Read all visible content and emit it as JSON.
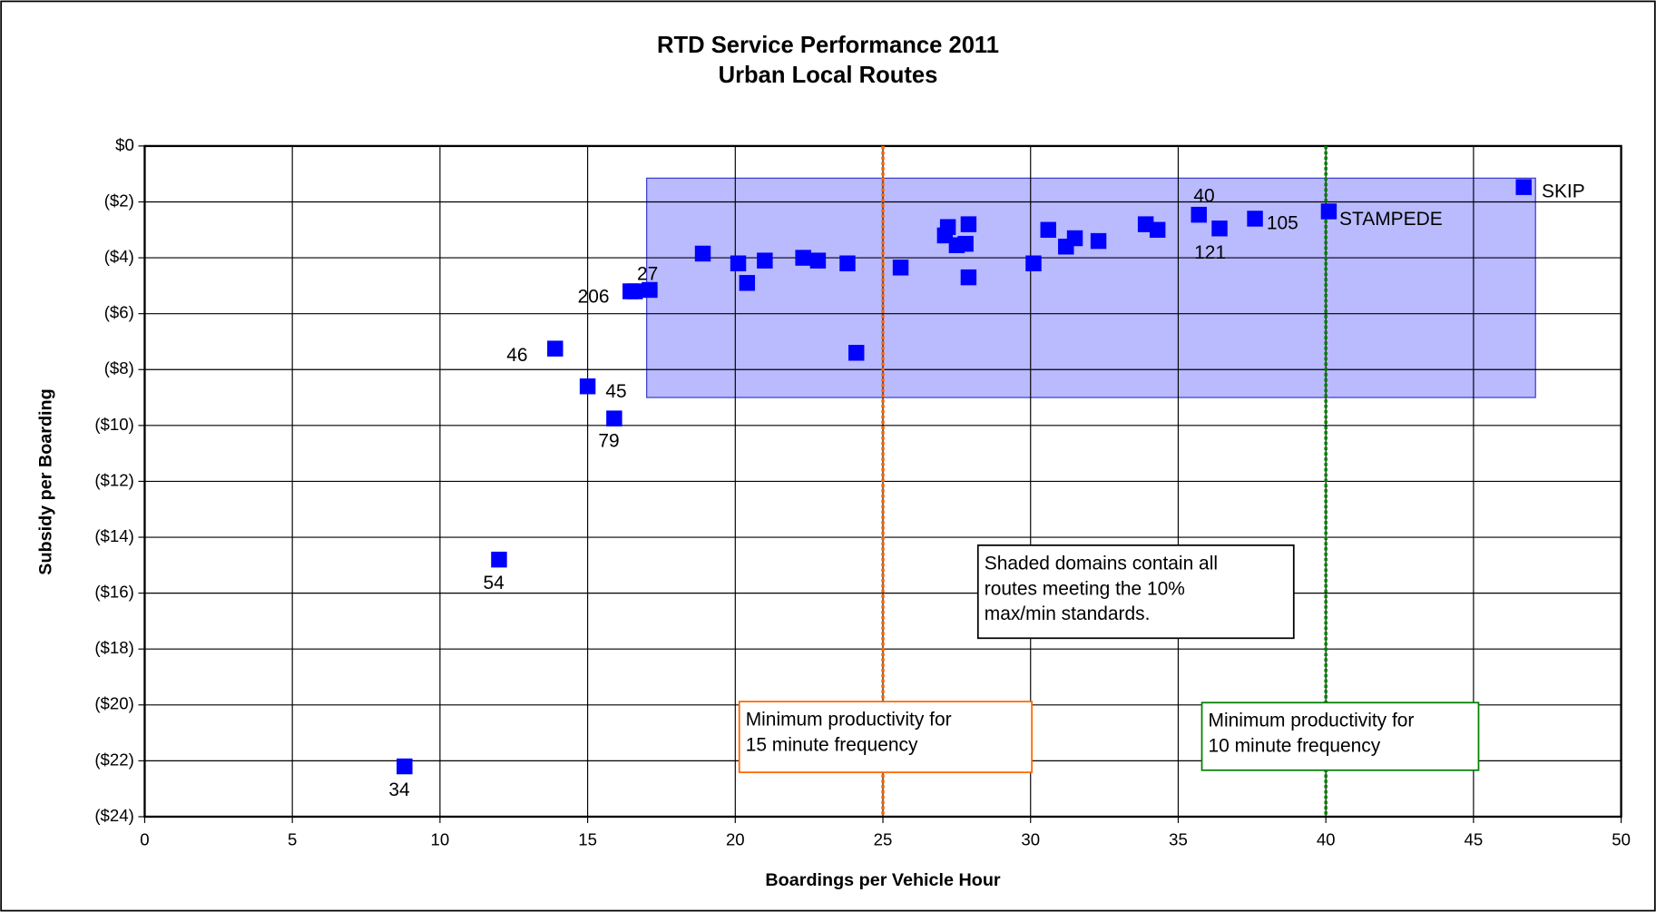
{
  "chart_data": {
    "type": "scatter",
    "title": "RTD Service Performance 2011",
    "subtitle": "Urban Local Routes",
    "xlabel": "Boardings per Vehicle Hour",
    "ylabel": "Subsidy per Boarding",
    "xlim": [
      0,
      50
    ],
    "xticks": [
      0,
      5,
      10,
      15,
      20,
      25,
      30,
      35,
      40,
      45,
      50
    ],
    "ylim": [
      -24,
      0
    ],
    "yticks": [
      {
        "value": 0,
        "label": "$0"
      },
      {
        "value": -2,
        "label": "($2)"
      },
      {
        "value": -4,
        "label": "($4)"
      },
      {
        "value": -6,
        "label": "($6)"
      },
      {
        "value": -8,
        "label": "($8)"
      },
      {
        "value": -10,
        "label": "($10)"
      },
      {
        "value": -12,
        "label": "($12)"
      },
      {
        "value": -14,
        "label": "($14)"
      },
      {
        "value": -16,
        "label": "($16)"
      },
      {
        "value": -18,
        "label": "($18)"
      },
      {
        "value": -20,
        "label": "($20)"
      },
      {
        "value": -22,
        "label": "($22)"
      },
      {
        "value": -24,
        "label": "($24)"
      }
    ],
    "grid": true,
    "color": "#0000ff",
    "x": [
      46.7,
      40.1,
      37.6,
      35.7,
      36.4,
      33.9,
      34.3,
      32.3,
      31.5,
      31.2,
      30.6,
      30.1,
      27.9,
      27.2,
      27.1,
      27.5,
      27.8,
      27.9,
      25.6,
      24.1,
      23.8,
      22.8,
      22.3,
      21.0,
      20.4,
      20.1,
      18.9,
      17.1,
      16.6,
      16.45,
      13.9,
      15.0,
      15.9,
      12.0,
      8.8
    ],
    "values": [
      -1.47,
      -2.34,
      -2.6,
      -2.46,
      -2.95,
      -2.8,
      -3.0,
      -3.4,
      -3.3,
      -3.6,
      -3.0,
      -4.2,
      -2.8,
      -2.9,
      -3.2,
      -3.55,
      -3.5,
      -4.7,
      -4.35,
      -7.4,
      -4.2,
      -4.1,
      -4.0,
      -4.1,
      -4.9,
      -4.2,
      -3.85,
      -5.15,
      -5.2,
      -5.2,
      -7.25,
      -8.6,
      -9.75,
      -14.8,
      -22.2
    ],
    "labels": [
      "SKIP",
      "STAMPEDE",
      "105",
      "40",
      "121",
      null,
      null,
      null,
      null,
      null,
      null,
      null,
      null,
      null,
      null,
      null,
      null,
      null,
      null,
      null,
      null,
      null,
      null,
      null,
      null,
      null,
      null,
      "27",
      null,
      "206",
      "46",
      "45",
      "79",
      "54",
      "34"
    ],
    "vlines": [
      {
        "x": 25,
        "color": "#ff6600"
      },
      {
        "x": 40,
        "color": "#008000"
      }
    ],
    "region": {
      "xlim": [
        17,
        47.1
      ],
      "ylim": [
        -9,
        -1.15
      ]
    },
    "annotations": [
      {
        "lines": [
          "Shaded domains contain all",
          "routes meeting the 10%",
          "max/min standards."
        ]
      },
      {
        "lines": [
          "Minimum productivity for",
          "15 minute frequency"
        ],
        "color": "#ff6600"
      },
      {
        "lines": [
          "Minimum productivity for",
          "10 minute frequency"
        ],
        "color": "#008000"
      }
    ]
  }
}
